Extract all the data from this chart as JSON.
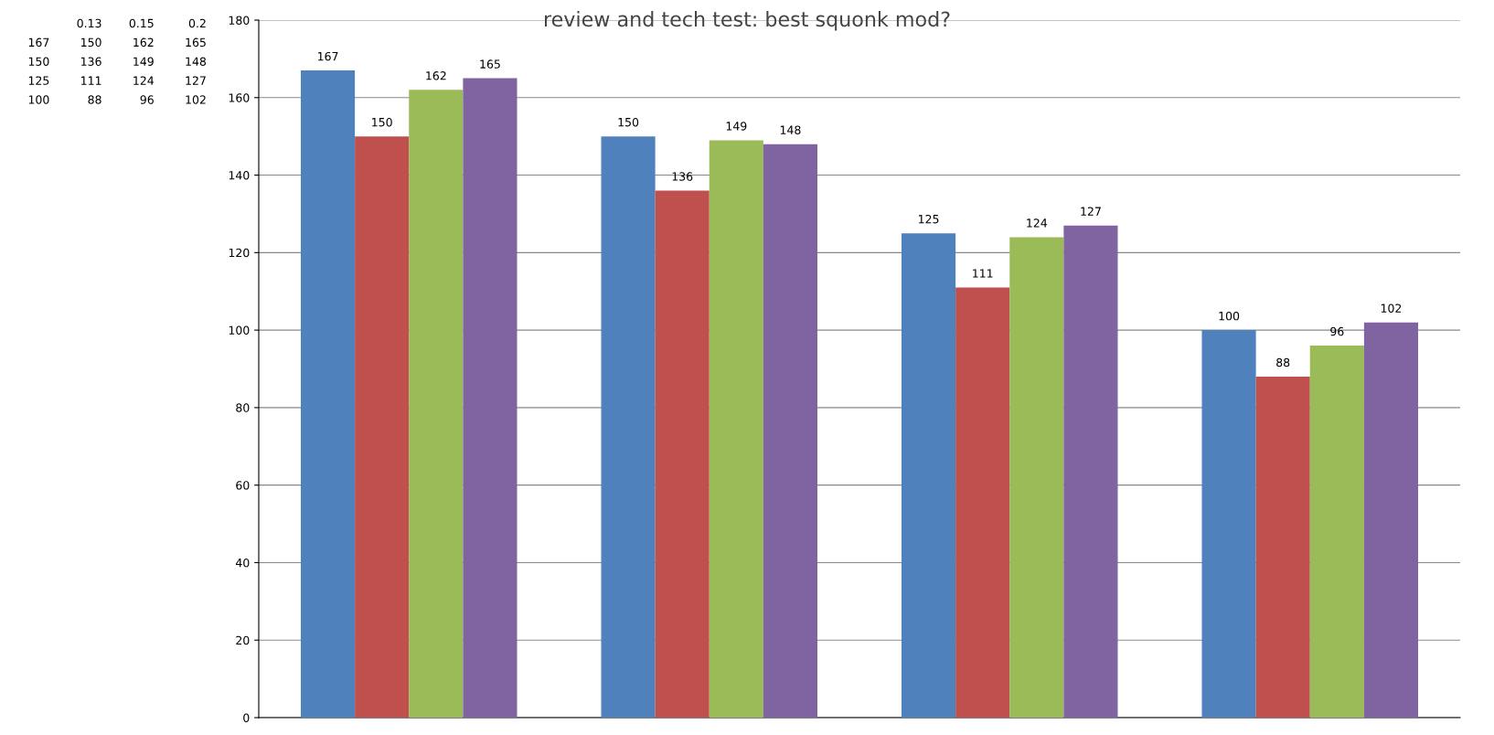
{
  "chart_data": [
    {
      "type": "other",
      "annotations": [
        null,
        "0.13",
        "0.15",
        "0.2",
        "167",
        "150",
        "162",
        "165",
        "150",
        "136",
        "149",
        "148",
        "125",
        "111",
        "124",
        "127",
        "100",
        "88",
        "96",
        "102"
      ]
    },
    {
      "type": "bar",
      "title": "review and tech test: best squonk mod?",
      "categories": [
        null,
        null,
        null,
        null
      ],
      "series": [
        {
          "color": "#4f81bd",
          "values": [
            167,
            150,
            125,
            100
          ]
        },
        {
          "color": "#c0504d",
          "values": [
            150,
            136,
            111,
            88
          ]
        },
        {
          "color": "#9bbb59",
          "values": [
            162,
            149,
            124,
            96
          ]
        },
        {
          "color": "#8064a2",
          "values": [
            165,
            148,
            127,
            102
          ]
        }
      ],
      "ylim": [
        0,
        180
      ],
      "yticks": [
        0,
        20,
        40,
        60,
        80,
        100,
        120,
        140,
        160,
        180
      ],
      "grid": "y",
      "data_labels": true,
      "legend": false
    }
  ]
}
